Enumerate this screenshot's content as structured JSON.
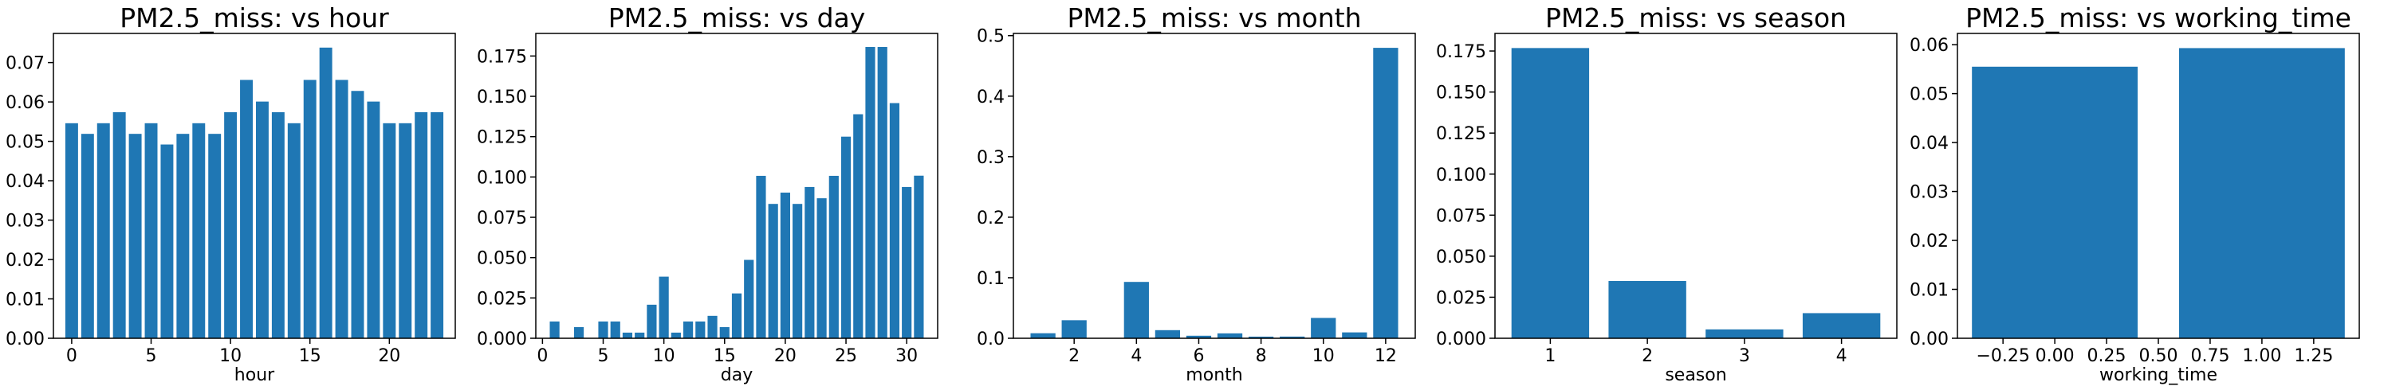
{
  "colors": {
    "bar": "#1f77b4",
    "axis": "#000000",
    "background": "#ffffff"
  },
  "chart_data": [
    {
      "type": "bar",
      "title": "PM2.5_miss: vs hour",
      "xlabel": "hour",
      "ylabel": "",
      "grid": false,
      "xlim": [
        -1.15,
        24.15
      ],
      "ylim": [
        0,
        0.0774
      ],
      "x": [
        0,
        1,
        2,
        3,
        4,
        5,
        6,
        7,
        8,
        9,
        10,
        11,
        12,
        13,
        14,
        15,
        16,
        17,
        18,
        19,
        20,
        21,
        22,
        23
      ],
      "values": [
        0.0546,
        0.0519,
        0.0546,
        0.0574,
        0.0519,
        0.0546,
        0.0492,
        0.0519,
        0.0546,
        0.0519,
        0.0574,
        0.0656,
        0.0601,
        0.0574,
        0.0546,
        0.0656,
        0.0738,
        0.0656,
        0.0628,
        0.0601,
        0.0546,
        0.0546,
        0.0574,
        0.0574
      ],
      "bar_width": 0.8,
      "xticks": [
        0,
        5,
        10,
        15,
        20
      ],
      "xtick_labels": [
        "0",
        "5",
        "10",
        "15",
        "20"
      ],
      "yticks": [
        0,
        0.01,
        0.02,
        0.03,
        0.04,
        0.05,
        0.06,
        0.07
      ],
      "ytick_labels": [
        "0.00",
        "0.01",
        "0.02",
        "0.03",
        "0.04",
        "0.05",
        "0.06",
        "0.07"
      ]
    },
    {
      "type": "bar",
      "title": "PM2.5_miss: vs day",
      "xlabel": "day",
      "ylabel": "",
      "grid": false,
      "xlim": [
        -0.55,
        32.55
      ],
      "ylim": [
        0,
        0.189
      ],
      "x": [
        1,
        2,
        3,
        4,
        5,
        6,
        7,
        8,
        9,
        10,
        11,
        12,
        13,
        14,
        15,
        16,
        17,
        18,
        19,
        20,
        21,
        22,
        23,
        24,
        25,
        26,
        27,
        28,
        29,
        30,
        31
      ],
      "values": [
        0.0104,
        0.0,
        0.0069,
        0.0,
        0.0104,
        0.0104,
        0.0035,
        0.0035,
        0.0208,
        0.0382,
        0.0035,
        0.0104,
        0.0104,
        0.0139,
        0.0069,
        0.0278,
        0.0486,
        0.1007,
        0.0833,
        0.0903,
        0.0833,
        0.0938,
        0.0868,
        0.1007,
        0.125,
        0.1389,
        0.1806,
        0.1806,
        0.1458,
        0.0938,
        0.1008
      ],
      "bar_width": 0.8,
      "xticks": [
        0,
        5,
        10,
        15,
        20,
        25,
        30
      ],
      "xtick_labels": [
        "0",
        "5",
        "10",
        "15",
        "20",
        "25",
        "30"
      ],
      "yticks": [
        0,
        0.025,
        0.05,
        0.075,
        0.1,
        0.125,
        0.15,
        0.175
      ],
      "ytick_labels": [
        "0.000",
        "0.025",
        "0.050",
        "0.075",
        "0.100",
        "0.125",
        "0.150",
        "0.175"
      ]
    },
    {
      "type": "bar",
      "title": "PM2.5_miss: vs month",
      "xlabel": "month",
      "ylabel": "",
      "grid": false,
      "xlim": [
        0.05,
        12.95
      ],
      "ylim": [
        0,
        0.5036
      ],
      "x": [
        1,
        2,
        3,
        4,
        5,
        6,
        7,
        8,
        9,
        10,
        11,
        12
      ],
      "values": [
        0.0083,
        0.0298,
        0.0,
        0.0931,
        0.0134,
        0.0042,
        0.0081,
        0.0027,
        0.0028,
        0.0336,
        0.0097,
        0.4798
      ],
      "bar_width": 0.8,
      "xticks": [
        2,
        4,
        6,
        8,
        10,
        12
      ],
      "xtick_labels": [
        "2",
        "4",
        "6",
        "8",
        "10",
        "12"
      ],
      "yticks": [
        0,
        0.1,
        0.2,
        0.3,
        0.4,
        0.5
      ],
      "ytick_labels": [
        "0.0",
        "0.1",
        "0.2",
        "0.3",
        "0.4",
        "0.5"
      ]
    },
    {
      "type": "bar",
      "title": "PM2.5_miss: vs season",
      "xlabel": "season",
      "ylabel": "",
      "grid": false,
      "xlim": [
        0.43,
        4.57
      ],
      "ylim": [
        0,
        0.1857
      ],
      "x": [
        1,
        2,
        3,
        4
      ],
      "values": [
        0.1768,
        0.0349,
        0.0054,
        0.0153
      ],
      "bar_width": 0.8,
      "xticks": [
        1,
        2,
        3,
        4
      ],
      "xtick_labels": [
        "1",
        "2",
        "3",
        "4"
      ],
      "yticks": [
        0,
        0.025,
        0.05,
        0.075,
        0.1,
        0.125,
        0.15,
        0.175
      ],
      "ytick_labels": [
        "0.000",
        "0.025",
        "0.050",
        "0.075",
        "0.100",
        "0.125",
        "0.150",
        "0.175"
      ]
    },
    {
      "type": "bar",
      "title": "PM2.5_miss: vs working_time",
      "xlabel": "working_time",
      "ylabel": "",
      "grid": false,
      "xlim": [
        -0.47,
        1.47
      ],
      "ylim": [
        0,
        0.0623
      ],
      "x": [
        0,
        1
      ],
      "values": [
        0.0555,
        0.0593
      ],
      "bar_width": 0.8,
      "xticks": [
        -0.25,
        0,
        0.25,
        0.5,
        0.75,
        1.0,
        1.25
      ],
      "xtick_labels": [
        "−0.25",
        "0.00",
        "0.25",
        "0.50",
        "0.75",
        "1.00",
        "1.25"
      ],
      "yticks": [
        0,
        0.01,
        0.02,
        0.03,
        0.04,
        0.05,
        0.06
      ],
      "ytick_labels": [
        "0.00",
        "0.01",
        "0.02",
        "0.03",
        "0.04",
        "0.05",
        "0.06"
      ]
    }
  ]
}
